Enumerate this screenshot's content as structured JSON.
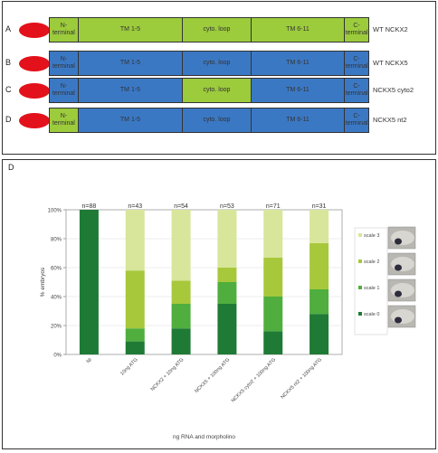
{
  "constructs": {
    "segment_labels": [
      "N-\nterminal",
      "TM 1-5",
      "cyto. loop",
      "TM 6-11",
      "C-\nterminal"
    ],
    "colors": {
      "green": "#9ccb3c",
      "blue": "#3b78c4"
    },
    "rows": [
      {
        "letter": "A",
        "label": "WT NCKX2",
        "segment_colors": [
          "green",
          "green",
          "green",
          "green",
          "green"
        ]
      },
      {
        "letter": "B",
        "label": "WT NCKX5",
        "segment_colors": [
          "blue",
          "blue",
          "blue",
          "blue",
          "blue"
        ]
      },
      {
        "letter": "C",
        "label": "NCKX5 cyto2",
        "segment_colors": [
          "blue",
          "blue",
          "green",
          "blue",
          "blue"
        ]
      },
      {
        "letter": "D",
        "label": "NCKX5 nt2",
        "segment_colors": [
          "green",
          "blue",
          "blue",
          "blue",
          "blue"
        ]
      }
    ]
  },
  "chart_panel_letter": "D",
  "chart_data": {
    "type": "bar",
    "stacked": true,
    "categories": [
      "NI",
      "10ng ATG",
      "NCKX2 + 10ng ATG",
      "NCKX5 + 100ng ATG",
      "NCKX5 cyto2 + 100ng ATG",
      "NCKX5 nt2 + 100ng ATG"
    ],
    "n_labels": [
      "n=88",
      "n=43",
      "n=54",
      "n=53",
      "n=71",
      "n=31"
    ],
    "series": [
      {
        "name": "scale 0",
        "color": "#1f7a35",
        "values": [
          100,
          9,
          18,
          35,
          16,
          28
        ]
      },
      {
        "name": "scale 1",
        "color": "#4fae3e",
        "values": [
          0,
          9,
          17,
          15,
          24,
          17
        ]
      },
      {
        "name": "scale 2",
        "color": "#a7c83b",
        "values": [
          0,
          40,
          16,
          10,
          27,
          32
        ]
      },
      {
        "name": "scale 3",
        "color": "#d7e69a",
        "values": [
          0,
          42,
          49,
          40,
          33,
          23
        ]
      }
    ],
    "ylim": [
      0,
      100
    ],
    "yticks": [
      "0%",
      "20%",
      "40%",
      "60%",
      "80%",
      "100%"
    ],
    "ylabel": "% embryos",
    "xlabel": "ng RNA and morpholino",
    "legend_position": "right"
  }
}
